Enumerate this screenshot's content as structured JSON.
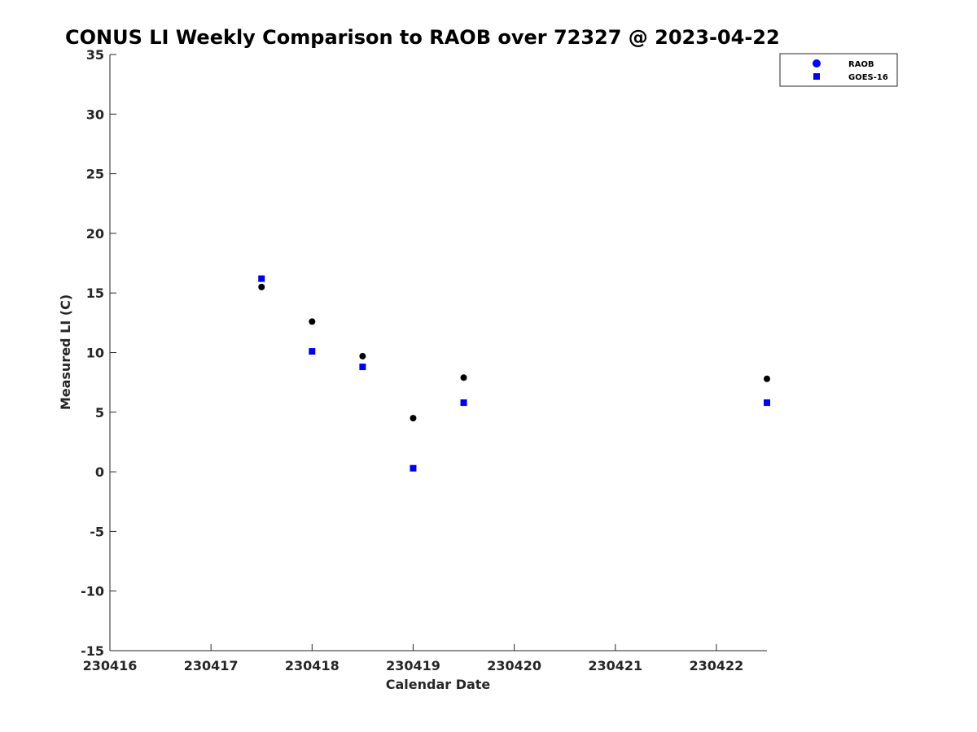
{
  "chart_data": {
    "type": "scatter",
    "title": "CONUS LI Weekly Comparison to RAOB over 72327 @ 2023-04-22",
    "xlabel": "Calendar Date",
    "ylabel": "Measured LI (C)",
    "xlim": [
      230416,
      230422.5
    ],
    "ylim": [
      -15,
      35
    ],
    "x_ticks": [
      230416,
      230417,
      230418,
      230419,
      230420,
      230421,
      230422
    ],
    "x_tick_labels": [
      "230416",
      "230417",
      "230418",
      "230419",
      "230420",
      "230421",
      "230422"
    ],
    "y_ticks": [
      -15,
      -10,
      -5,
      0,
      5,
      10,
      15,
      20,
      25,
      30,
      35
    ],
    "y_tick_labels": [
      "-15",
      "-10",
      "-5",
      "0",
      "5",
      "10",
      "15",
      "20",
      "25",
      "30",
      "35"
    ],
    "grid": false,
    "legend_position": "top-right",
    "series": [
      {
        "name": "RAOB",
        "marker": "circle",
        "color": "#000000",
        "legend_color": "#0000ff",
        "x": [
          230417.5,
          230418.0,
          230418.5,
          230419.0,
          230419.5,
          230422.5
        ],
        "y": [
          15.5,
          12.6,
          9.7,
          4.5,
          7.9,
          7.8
        ]
      },
      {
        "name": "GOES-16",
        "marker": "square",
        "color": "#0000ee",
        "legend_color": "#0000ee",
        "x": [
          230417.5,
          230418.0,
          230418.5,
          230419.0,
          230419.5,
          230422.5
        ],
        "y": [
          16.2,
          10.1,
          8.8,
          0.3,
          5.8,
          5.8
        ]
      }
    ]
  }
}
